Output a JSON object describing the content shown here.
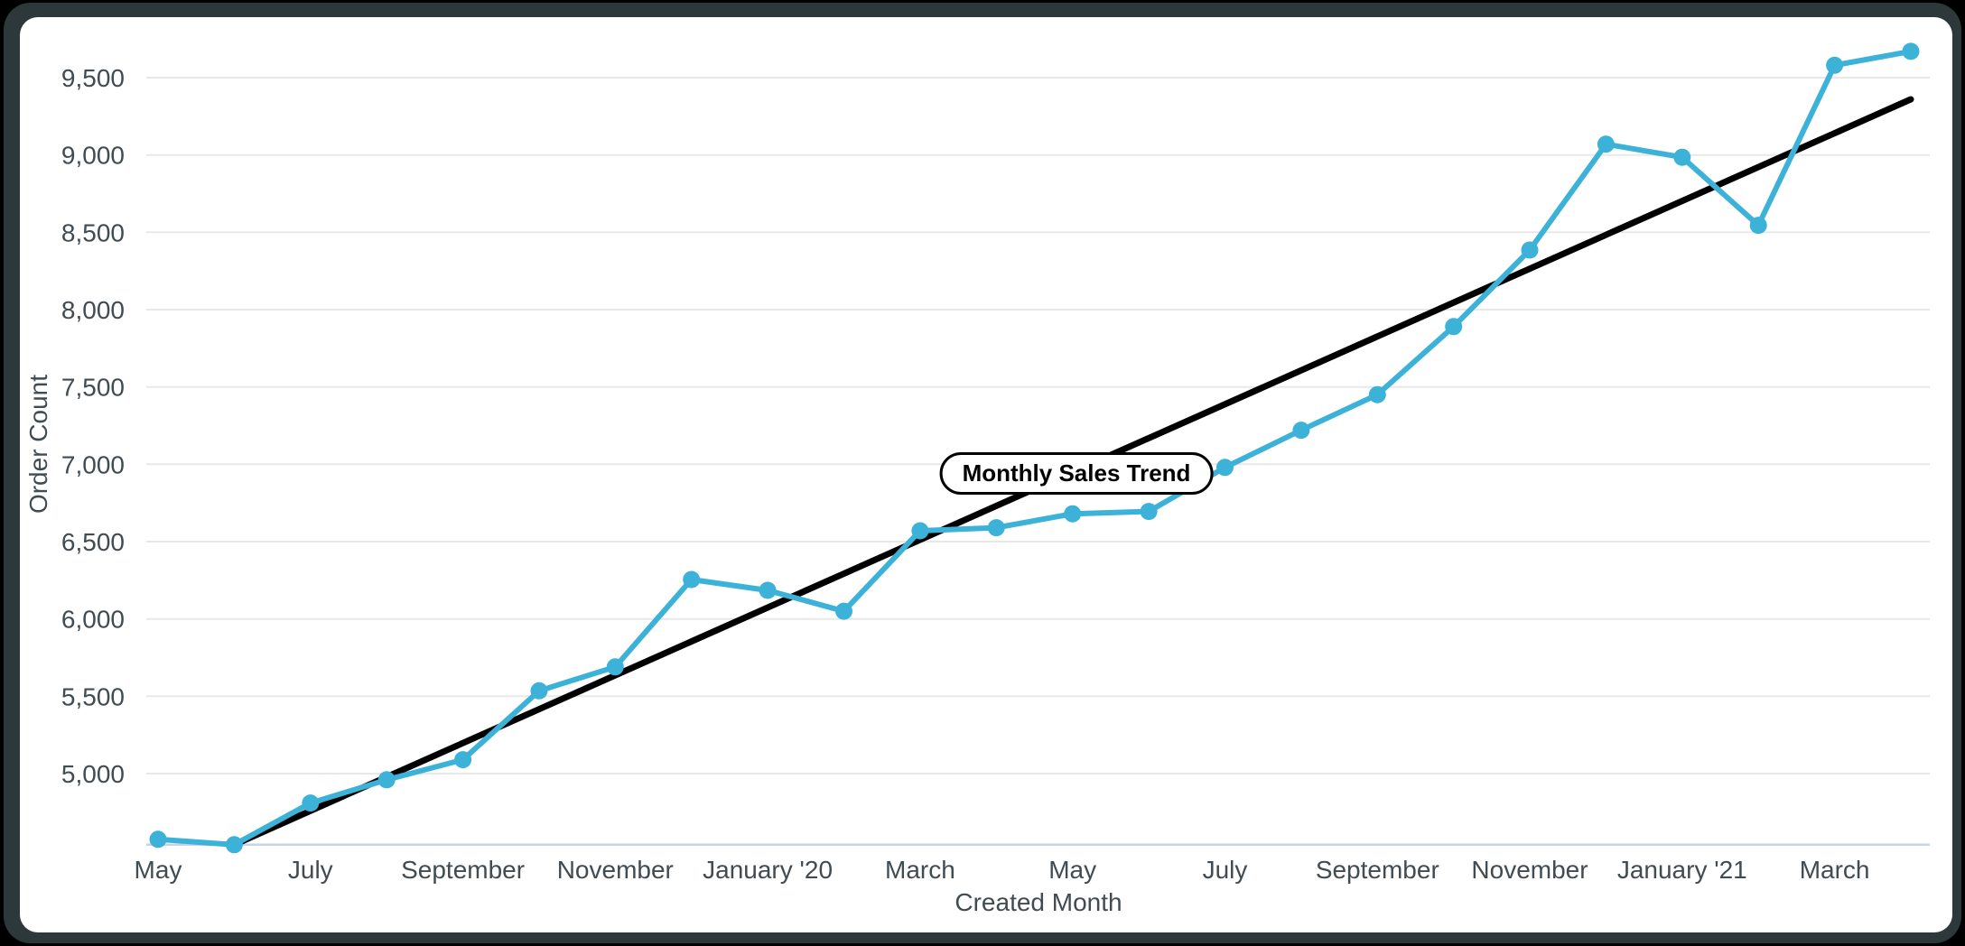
{
  "window": {
    "frame_color": "#2D383B",
    "card_color": "#FFFFFF"
  },
  "chart_data": {
    "type": "line",
    "title": "Monthly Sales Trend",
    "xlabel": "Created Month",
    "ylabel": "Order Count",
    "categories": [
      "May 2019",
      "June 2019",
      "July 2019",
      "August 2019",
      "September 2019",
      "October 2019",
      "November 2019",
      "December 2019",
      "January 2020",
      "February 2020",
      "March 2020",
      "April 2020",
      "May 2020",
      "June 2020",
      "July 2020",
      "August 2020",
      "September 2020",
      "October 2020",
      "November 2020",
      "December 2020",
      "January 2021",
      "February 2021",
      "March 2021",
      "April 2021"
    ],
    "series": [
      {
        "name": "Order Count",
        "color": "#3CB2D8",
        "values": [
          4575,
          4540,
          4810,
          4960,
          5090,
          5535,
          5690,
          6255,
          6185,
          6050,
          6570,
          6590,
          6680,
          6695,
          6980,
          7220,
          7450,
          7890,
          8385,
          9070,
          8985,
          8545,
          9580,
          9670
        ]
      }
    ],
    "trendline": {
      "type": "linear",
      "color": "#000000",
      "start_index": 1,
      "start_value": 4540,
      "end_index": 23,
      "end_value": 9360
    },
    "x_tick_indices": [
      0,
      2,
      4,
      6,
      8,
      10,
      12,
      14,
      16,
      18,
      20,
      22
    ],
    "x_tick_labels": [
      "May",
      "July",
      "September",
      "November",
      "January '20",
      "March",
      "May",
      "July",
      "September",
      "November",
      "January '21",
      "March"
    ],
    "y_ticks": [
      5000,
      5500,
      6000,
      6500,
      7000,
      7500,
      8000,
      8500,
      9000,
      9500
    ],
    "y_tick_labels": [
      "5,000",
      "5,500",
      "6,000",
      "6,500",
      "7,000",
      "7,500",
      "8,000",
      "8,500",
      "9,000",
      "9,500"
    ],
    "ylim": [
      4540,
      9960
    ],
    "grid": "horizontal",
    "legend": "none",
    "annotation_label": "Monthly Sales Trend"
  },
  "styles": {
    "grid_color": "#E8E8E8",
    "axis_line_color": "#C9D2E9",
    "text_color": "#414B52",
    "point_color": "#3CB2D8"
  }
}
